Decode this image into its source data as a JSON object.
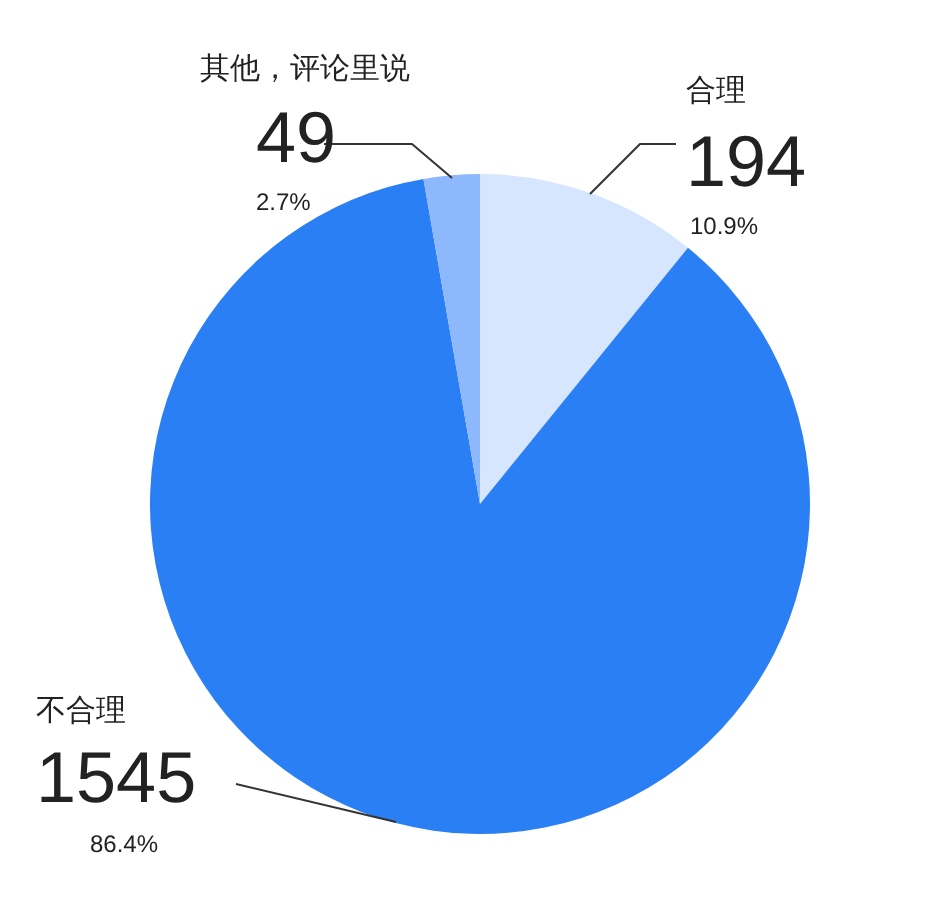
{
  "chart_data": {
    "type": "pie",
    "categories": [
      "合理",
      "不合理",
      "其他，评论里说"
    ],
    "values": [
      194,
      1545,
      49
    ],
    "colors": [
      "#d6e6ff",
      "#2a7ff5",
      "#8db8fb"
    ],
    "data_labels": true,
    "annotations": [
      "10.9%",
      "86.4%",
      "2.7%"
    ]
  }
}
